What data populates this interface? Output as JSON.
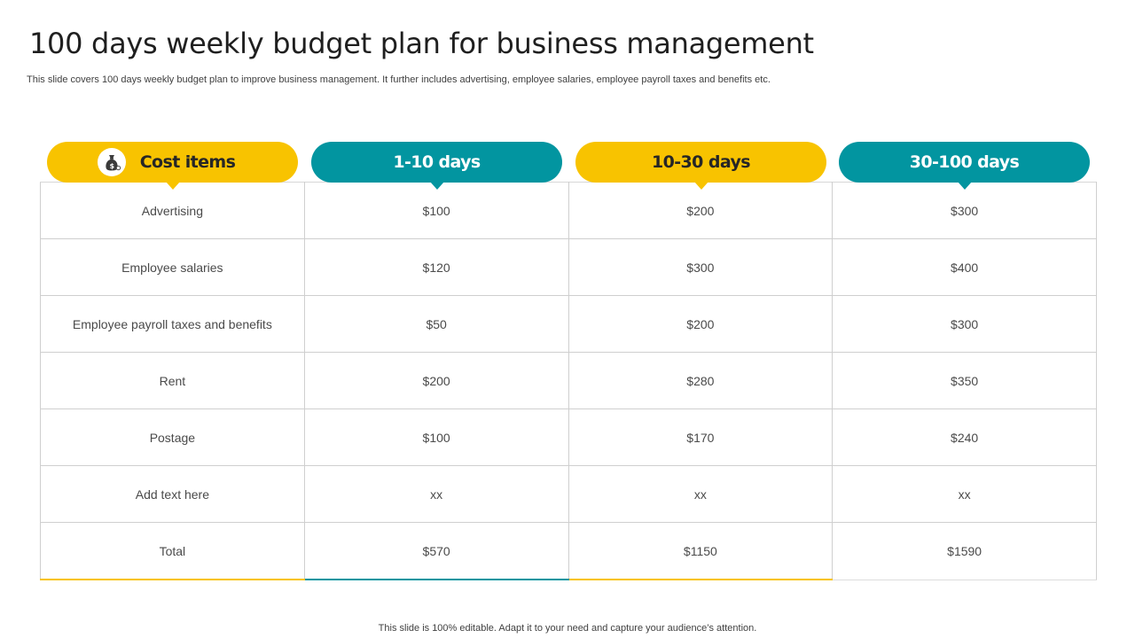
{
  "title": "100 days weekly budget plan for business management",
  "subtitle": "This slide covers 100 days weekly budget plan to improve business management. It further includes advertising, employee salaries, employee payroll taxes and benefits etc.",
  "footer": "This slide is 100% editable. Adapt it to your need and capture your audience’s attention.",
  "colors": {
    "yellow": "#f8c300",
    "teal": "#0295a0"
  },
  "headers": [
    {
      "label": "Cost items",
      "icon": "money-bag-icon"
    },
    {
      "label": "1-10 days"
    },
    {
      "label": "10-30 days"
    },
    {
      "label": "30-100 days"
    }
  ],
  "rows": [
    [
      "Advertising",
      "$100",
      "$200",
      "$300"
    ],
    [
      "Employee salaries",
      "$120",
      "$300",
      "$400"
    ],
    [
      "Employee payroll taxes and benefits",
      "$50",
      "$200",
      "$300"
    ],
    [
      "Rent",
      "$200",
      "$280",
      "$350"
    ],
    [
      "Postage",
      "$100",
      "$170",
      "$240"
    ],
    [
      "Add text here",
      "xx",
      "xx",
      "xx"
    ],
    [
      "Total",
      "$570",
      "$1150",
      "$1590"
    ]
  ]
}
